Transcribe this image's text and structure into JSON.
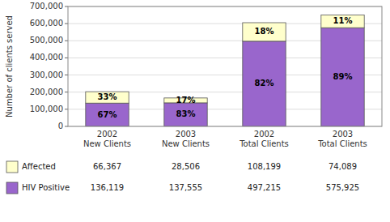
{
  "chart_data": {
    "type": "bar",
    "stacked": true,
    "categories": [
      "2002\nNew Clients",
      "2003\nNew Clients",
      "2002\nTotal Clients",
      "2003\nTotal Clients"
    ],
    "series": [
      {
        "name": "HIV Positive",
        "color": "#9966CC",
        "values": [
          136119,
          137555,
          497215,
          575925
        ],
        "value_labels": [
          "136,119",
          "137,555",
          "497,215",
          "575,925"
        ],
        "shares": [
          67,
          83,
          82,
          89
        ],
        "share_labels": [
          "67%",
          "83%",
          "82%",
          "89%"
        ]
      },
      {
        "name": "Affected",
        "color": "#FFFFCC",
        "values": [
          66367,
          28506,
          108199,
          74089
        ],
        "value_labels": [
          "66,367",
          "28,506",
          "108,199",
          "74,089"
        ],
        "shares": [
          33,
          17,
          18,
          11
        ],
        "share_labels": [
          "33%",
          "17%",
          "18%",
          "11%"
        ]
      }
    ],
    "ylabel": "Number of clients served",
    "ylim": [
      0,
      700000
    ],
    "yticks": [
      0,
      {
        "value": 100000,
        "label": "100,000"
      },
      {
        "value": 200000,
        "label": "200,000"
      },
      {
        "value": 300000,
        "label": "300,000"
      },
      {
        "value": 400000,
        "label": "400,000"
      },
      {
        "value": 500000,
        "label": "500,000"
      },
      {
        "value": 600000,
        "label": "600,000"
      },
      {
        "value": 700000,
        "label": "700,000"
      }
    ],
    "grid": true
  }
}
